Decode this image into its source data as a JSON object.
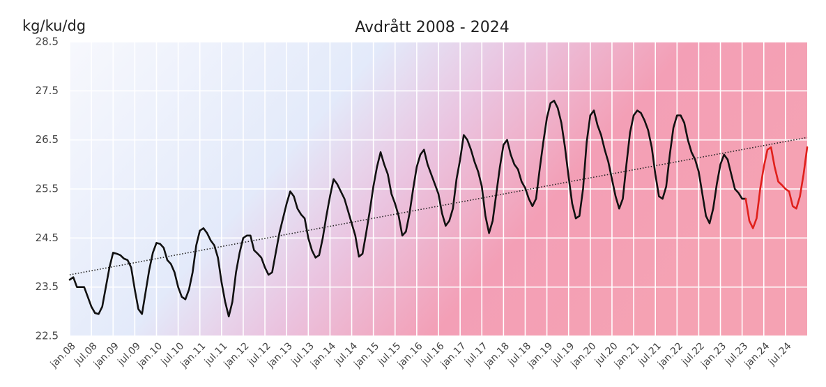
{
  "chart_data": {
    "type": "line",
    "title": "Avdrått 2008 - 2024",
    "y_label": "kg/ku/dg",
    "categories": [
      "jan.08",
      null,
      null,
      null,
      null,
      null,
      "jul.08",
      null,
      null,
      null,
      null,
      null,
      "jan.09",
      null,
      null,
      null,
      null,
      null,
      "jul.09",
      null,
      null,
      null,
      null,
      null,
      "jan.10",
      null,
      null,
      null,
      null,
      null,
      "jul.10",
      null,
      null,
      null,
      null,
      null,
      "jan.11",
      null,
      null,
      null,
      null,
      null,
      "jul.11",
      null,
      null,
      null,
      null,
      null,
      "jan.12",
      null,
      null,
      null,
      null,
      null,
      "jul.12",
      null,
      null,
      null,
      null,
      null,
      "jan.13",
      null,
      null,
      null,
      null,
      null,
      "jul.13",
      null,
      null,
      null,
      null,
      null,
      "jan.14",
      null,
      null,
      null,
      null,
      null,
      "jul.14",
      null,
      null,
      null,
      null,
      null,
      "jan.15",
      null,
      null,
      null,
      null,
      null,
      "jul.15",
      null,
      null,
      null,
      null,
      null,
      "jan.16",
      null,
      null,
      null,
      null,
      null,
      "jul.16",
      null,
      null,
      null,
      null,
      null,
      "jan.17",
      null,
      null,
      null,
      null,
      null,
      "jul.17",
      null,
      null,
      null,
      null,
      null,
      "jan.18",
      null,
      null,
      null,
      null,
      null,
      "jul.18",
      null,
      null,
      null,
      null,
      null,
      "jan.19",
      null,
      null,
      null,
      null,
      null,
      "jul.19",
      null,
      null,
      null,
      null,
      null,
      "jan.20",
      null,
      null,
      null,
      null,
      null,
      "jul.20",
      null,
      null,
      null,
      null,
      null,
      "jan.21",
      null,
      null,
      null,
      null,
      null,
      "jul.21",
      null,
      null,
      null,
      null,
      null,
      "jan.22",
      null,
      null,
      null,
      null,
      null,
      "jul.22",
      null,
      null,
      null,
      null,
      null,
      "jan.23",
      null,
      null,
      null,
      null,
      null,
      "jul.23",
      null,
      null,
      null,
      null,
      null,
      "jan.24",
      null,
      null,
      null,
      null,
      null,
      "jul.24",
      null,
      null,
      null,
      null,
      null,
      null
    ],
    "series": [
      {
        "color": "#111111",
        "values": [
          23.65,
          23.7,
          23.5,
          23.5,
          23.5,
          23.3,
          23.1,
          22.97,
          22.95,
          23.1,
          23.5,
          23.9,
          24.2,
          24.18,
          24.15,
          24.08,
          24.05,
          23.9,
          23.45,
          23.05,
          22.95,
          23.4,
          23.85,
          24.2,
          24.4,
          24.38,
          24.3,
          24.05,
          23.97,
          23.8,
          23.5,
          23.3,
          23.25,
          23.45,
          23.8,
          24.35,
          24.65,
          24.7,
          24.6,
          24.45,
          24.35,
          24.1,
          23.6,
          23.2,
          22.9,
          23.2,
          23.8,
          24.2,
          24.5,
          24.55,
          24.55,
          24.25,
          24.18,
          24.1,
          23.9,
          23.75,
          23.8,
          24.2,
          24.6,
          24.9,
          25.2,
          25.45,
          25.35,
          25.1,
          24.98,
          24.9,
          24.5,
          24.25,
          24.1,
          24.15,
          24.5,
          24.95,
          25.35,
          25.7,
          25.6,
          25.45,
          25.3,
          25.05,
          24.8,
          24.55,
          24.12,
          24.18,
          24.6,
          25.05,
          25.55,
          25.95,
          26.25,
          26.0,
          25.8,
          25.4,
          25.2,
          24.95,
          24.55,
          24.63,
          25.0,
          25.5,
          25.95,
          26.2,
          26.3,
          26.0,
          25.8,
          25.6,
          25.4,
          25.0,
          24.75,
          24.85,
          25.1,
          25.7,
          26.1,
          26.6,
          26.5,
          26.3,
          26.05,
          25.85,
          25.55,
          24.95,
          24.6,
          24.85,
          25.4,
          25.95,
          26.4,
          26.5,
          26.2,
          26.0,
          25.9,
          25.65,
          25.52,
          25.3,
          25.15,
          25.3,
          25.9,
          26.45,
          26.95,
          27.25,
          27.3,
          27.15,
          26.85,
          26.35,
          25.75,
          25.2,
          24.9,
          24.95,
          25.5,
          26.45,
          27.0,
          27.1,
          26.8,
          26.6,
          26.3,
          26.05,
          25.7,
          25.35,
          25.1,
          25.3,
          26.0,
          26.65,
          27.0,
          27.1,
          27.05,
          26.9,
          26.7,
          26.35,
          25.8,
          25.35,
          25.3,
          25.55,
          26.2,
          26.75,
          27.0,
          27.0,
          26.85,
          26.5,
          26.25,
          26.1,
          25.85,
          25.4,
          24.95,
          24.8,
          25.1,
          25.6,
          26.0,
          26.2,
          26.1,
          25.8,
          25.5,
          25.42,
          25.3,
          25.3,
          null,
          null,
          null,
          null,
          null,
          null,
          null,
          null,
          null,
          null,
          null,
          null,
          null,
          null,
          null,
          null,
          null
        ]
      },
      {
        "color": "#e0201b",
        "values": [
          null,
          null,
          null,
          null,
          null,
          null,
          null,
          null,
          null,
          null,
          null,
          null,
          null,
          null,
          null,
          null,
          null,
          null,
          null,
          null,
          null,
          null,
          null,
          null,
          null,
          null,
          null,
          null,
          null,
          null,
          null,
          null,
          null,
          null,
          null,
          null,
          null,
          null,
          null,
          null,
          null,
          null,
          null,
          null,
          null,
          null,
          null,
          null,
          null,
          null,
          null,
          null,
          null,
          null,
          null,
          null,
          null,
          null,
          null,
          null,
          null,
          null,
          null,
          null,
          null,
          null,
          null,
          null,
          null,
          null,
          null,
          null,
          null,
          null,
          null,
          null,
          null,
          null,
          null,
          null,
          null,
          null,
          null,
          null,
          null,
          null,
          null,
          null,
          null,
          null,
          null,
          null,
          null,
          null,
          null,
          null,
          null,
          null,
          null,
          null,
          null,
          null,
          null,
          null,
          null,
          null,
          null,
          null,
          null,
          null,
          null,
          null,
          null,
          null,
          null,
          null,
          null,
          null,
          null,
          null,
          null,
          null,
          null,
          null,
          null,
          null,
          null,
          null,
          null,
          null,
          null,
          null,
          null,
          null,
          null,
          null,
          null,
          null,
          null,
          null,
          null,
          null,
          null,
          null,
          null,
          null,
          null,
          null,
          null,
          null,
          null,
          null,
          null,
          null,
          null,
          null,
          null,
          null,
          null,
          null,
          null,
          null,
          null,
          null,
          null,
          null,
          null,
          null,
          null,
          null,
          null,
          null,
          null,
          null,
          null,
          null,
          null,
          null,
          null,
          null,
          null,
          null,
          null,
          null,
          null,
          null,
          null,
          25.3,
          24.85,
          24.7,
          24.9,
          25.5,
          25.95,
          26.3,
          26.35,
          25.95,
          25.65,
          25.58,
          25.5,
          25.45,
          25.15,
          25.1,
          25.35,
          25.8,
          26.35
        ]
      }
    ],
    "trend": {
      "color": "#222222",
      "values": [
        23.75,
        26.55
      ]
    },
    "ylim": [
      22.5,
      28.5
    ],
    "yticks": [
      22.5,
      23.5,
      24.5,
      25.5,
      26.5,
      27.5,
      28.5
    ],
    "grid": true
  }
}
